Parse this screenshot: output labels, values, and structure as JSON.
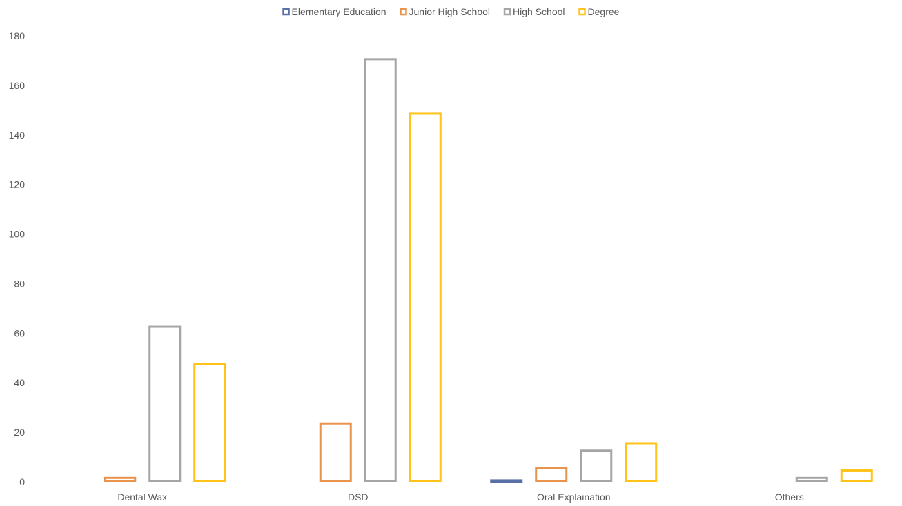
{
  "chart_data": {
    "type": "bar",
    "title": "",
    "xlabel": "",
    "ylabel": "",
    "ylim": [
      0,
      180
    ],
    "yticks": [
      0,
      20,
      40,
      60,
      80,
      100,
      120,
      140,
      160,
      180
    ],
    "grid": false,
    "legend_position": "top",
    "categories": [
      "Dental Wax",
      "DSD",
      "Oral Explaination",
      "Others"
    ],
    "series": [
      {
        "name": "Elementary Education",
        "color": "#5a6fa6",
        "values": [
          0,
          0,
          1,
          0
        ]
      },
      {
        "name": "Junior High School",
        "color": "#e8944f",
        "values": [
          2,
          24,
          6,
          0
        ]
      },
      {
        "name": "High School",
        "color": "#a5a5a5",
        "values": [
          63,
          171,
          13,
          2
        ]
      },
      {
        "name": "Degree",
        "color": "#ffc31a",
        "values": [
          48,
          149,
          16,
          5
        ]
      }
    ]
  }
}
